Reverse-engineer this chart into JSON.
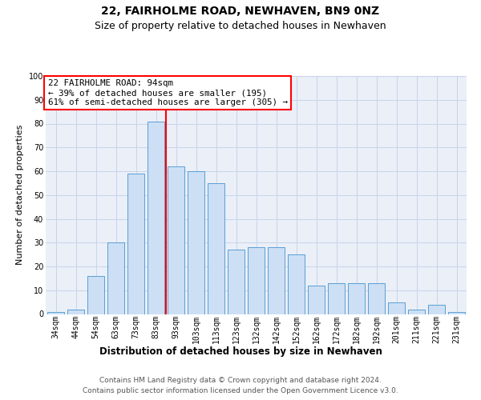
{
  "title": "22, FAIRHOLME ROAD, NEWHAVEN, BN9 0NZ",
  "subtitle": "Size of property relative to detached houses in Newhaven",
  "xlabel": "Distribution of detached houses by size in Newhaven",
  "ylabel": "Number of detached properties",
  "categories": [
    "34sqm",
    "44sqm",
    "54sqm",
    "63sqm",
    "73sqm",
    "83sqm",
    "93sqm",
    "103sqm",
    "113sqm",
    "123sqm",
    "132sqm",
    "142sqm",
    "152sqm",
    "162sqm",
    "172sqm",
    "182sqm",
    "192sqm",
    "201sqm",
    "211sqm",
    "221sqm",
    "231sqm"
  ],
  "values": [
    1,
    2,
    16,
    30,
    59,
    81,
    62,
    60,
    55,
    27,
    28,
    28,
    25,
    12,
    13,
    13,
    13,
    5,
    2,
    4,
    1
  ],
  "bar_color": "#ccdff5",
  "bar_edge_color": "#5a9fd4",
  "ref_line_x": 5.5,
  "annotation_line1": "22 FAIRHOLME ROAD: 94sqm",
  "annotation_line2": "← 39% of detached houses are smaller (195)",
  "annotation_line3": "61% of semi-detached houses are larger (305) →",
  "ylim": [
    0,
    100
  ],
  "yticks": [
    0,
    10,
    20,
    30,
    40,
    50,
    60,
    70,
    80,
    90,
    100
  ],
  "grid_color": "#c8d4e8",
  "bg_color": "#eaeff8",
  "footer_line1": "Contains HM Land Registry data © Crown copyright and database right 2024.",
  "footer_line2": "Contains public sector information licensed under the Open Government Licence v3.0.",
  "title_fontsize": 10,
  "subtitle_fontsize": 9,
  "annot_fontsize": 7.8,
  "tick_fontsize": 7,
  "xlabel_fontsize": 8.5,
  "ylabel_fontsize": 8,
  "footer_fontsize": 6.5
}
